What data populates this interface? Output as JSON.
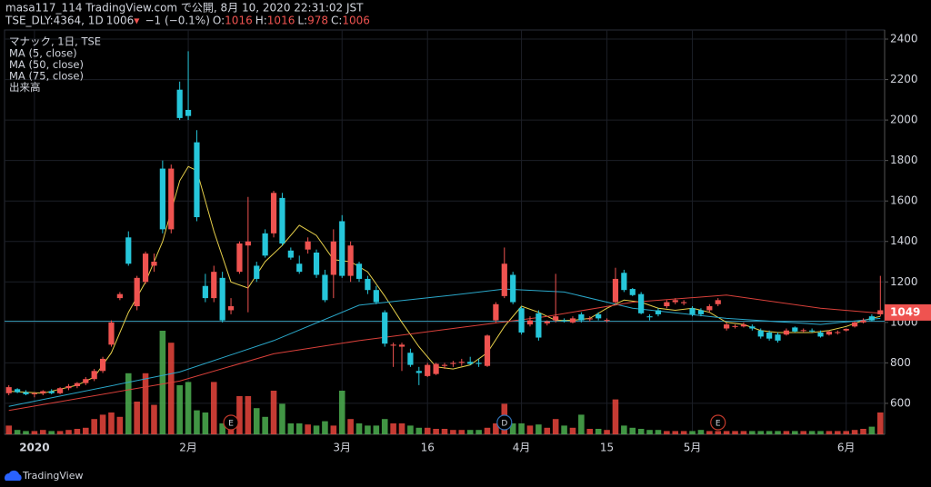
{
  "header": {
    "line1": "masa117_114 TradingView.com で公開, 8月 10, 2020 22:31:02 JST",
    "symbol": "TSE_DLY:4364, 1D",
    "last": 1006,
    "arrow": "▼",
    "change": "−1 (−0.1%)",
    "ohlc": [
      {
        "key": "O:",
        "value": 1016
      },
      {
        "key": "H:",
        "value": 1016
      },
      {
        "key": "L:",
        "value": 978
      },
      {
        "key": "C:",
        "value": 1006
      }
    ]
  },
  "chart_data": {
    "type": "candlestick",
    "title": "マナック, 1日, TSE",
    "volume_name": "出来高",
    "up_color": "#ef5350",
    "down_color": "#26c6da",
    "volume_up_color": "#e8453c",
    "volume_down_color": "#4caf50",
    "ylim": [
      447,
      2445
    ],
    "yticks": [
      600,
      800,
      1000,
      1200,
      1400,
      1600,
      1800,
      2000,
      2200,
      2400
    ],
    "xlim": [
      -0.5,
      102.5
    ],
    "xticks": [
      {
        "value": 3,
        "label": "2020"
      },
      {
        "value": 21,
        "label": "2月"
      },
      {
        "value": 39,
        "label": "3月"
      },
      {
        "value": 49,
        "label": "16"
      },
      {
        "value": 60,
        "label": "4月"
      },
      {
        "value": 70,
        "label": "15"
      },
      {
        "value": 80,
        "label": "5月"
      },
      {
        "value": 98,
        "label": "6月"
      }
    ],
    "vlim": [
      0,
      100
    ],
    "grid": true,
    "price_line": 1006,
    "last_price": 1049,
    "ohlc": [
      [
        650,
        690,
        640,
        680
      ],
      [
        670,
        675,
        650,
        655
      ],
      [
        655,
        665,
        640,
        645
      ],
      [
        645,
        655,
        630,
        650
      ],
      [
        650,
        665,
        640,
        660
      ],
      [
        660,
        670,
        645,
        650
      ],
      [
        650,
        680,
        645,
        675
      ],
      [
        675,
        695,
        665,
        685
      ],
      [
        685,
        705,
        675,
        700
      ],
      [
        700,
        730,
        690,
        720
      ],
      [
        720,
        770,
        710,
        760
      ],
      [
        760,
        830,
        750,
        820
      ],
      [
        890,
        1010,
        880,
        1000
      ],
      [
        1120,
        1150,
        1110,
        1140
      ],
      [
        1420,
        1450,
        1280,
        1290
      ],
      [
        1080,
        1230,
        1060,
        1220
      ],
      [
        1200,
        1350,
        1190,
        1340
      ],
      [
        1280,
        1340,
        1250,
        1300
      ],
      [
        1760,
        1800,
        1440,
        1460
      ],
      [
        1460,
        1780,
        1440,
        1760
      ],
      [
        2150,
        2190,
        2000,
        2010
      ],
      [
        2050,
        2340,
        2000,
        2020
      ],
      [
        1890,
        1950,
        1500,
        1520
      ],
      [
        1180,
        1240,
        1100,
        1120
      ],
      [
        1120,
        1280,
        1100,
        1250
      ],
      [
        1220,
        1250,
        1000,
        1010
      ],
      [
        1060,
        1120,
        1040,
        1080
      ],
      [
        1250,
        1400,
        1240,
        1390
      ],
      [
        1380,
        1620,
        1050,
        1400
      ],
      [
        1280,
        1300,
        1200,
        1215
      ],
      [
        1440,
        1460,
        1320,
        1330
      ],
      [
        1440,
        1650,
        1420,
        1640
      ],
      [
        1615,
        1640,
        1380,
        1390
      ],
      [
        1355,
        1370,
        1310,
        1320
      ],
      [
        1290,
        1330,
        1240,
        1250
      ],
      [
        1360,
        1420,
        1340,
        1400
      ],
      [
        1345,
        1360,
        1220,
        1235
      ],
      [
        1235,
        1260,
        1100,
        1110
      ],
      [
        1235,
        1460,
        1120,
        1400
      ],
      [
        1500,
        1530,
        1220,
        1230
      ],
      [
        1230,
        1400,
        1200,
        1380
      ],
      [
        1290,
        1300,
        1200,
        1215
      ],
      [
        1215,
        1230,
        1140,
        1160
      ],
      [
        1160,
        1180,
        1090,
        1100
      ],
      [
        1050,
        1060,
        880,
        895
      ],
      [
        885,
        900,
        780,
        890
      ],
      [
        880,
        900,
        760,
        890
      ],
      [
        850,
        870,
        780,
        790
      ],
      [
        760,
        780,
        690,
        750
      ],
      [
        735,
        800,
        730,
        790
      ],
      [
        745,
        800,
        740,
        795
      ],
      [
        785,
        800,
        770,
        790
      ],
      [
        795,
        810,
        780,
        800
      ],
      [
        800,
        820,
        785,
        805
      ],
      [
        805,
        830,
        790,
        795
      ],
      [
        800,
        820,
        780,
        795
      ],
      [
        785,
        940,
        780,
        935
      ],
      [
        1010,
        1100,
        1000,
        1090
      ],
      [
        1130,
        1370,
        1120,
        1290
      ],
      [
        1235,
        1250,
        1090,
        1100
      ],
      [
        1070,
        1080,
        940,
        950
      ],
      [
        990,
        1030,
        980,
        1010
      ],
      [
        1045,
        1060,
        910,
        925
      ],
      [
        995,
        1010,
        985,
        1005
      ],
      [
        1010,
        1240,
        1000,
        1030
      ],
      [
        1010,
        1020,
        1000,
        1005
      ],
      [
        1000,
        1030,
        995,
        1020
      ],
      [
        1040,
        1050,
        1000,
        1010
      ],
      [
        1015,
        1030,
        1005,
        1020
      ],
      [
        1040,
        1050,
        1010,
        1020
      ],
      [
        1010,
        1020,
        1000,
        1012
      ],
      [
        1100,
        1270,
        1090,
        1215
      ],
      [
        1245,
        1260,
        1150,
        1160
      ],
      [
        1165,
        1170,
        1130,
        1135
      ],
      [
        1140,
        1150,
        1040,
        1045
      ],
      [
        1030,
        1040,
        1010,
        1025
      ],
      [
        1060,
        1070,
        1030,
        1040
      ],
      [
        1080,
        1110,
        1070,
        1100
      ],
      [
        1100,
        1120,
        1090,
        1110
      ],
      [
        1095,
        1110,
        1085,
        1100
      ],
      [
        1070,
        1080,
        1030,
        1040
      ],
      [
        1060,
        1070,
        1030,
        1040
      ],
      [
        1060,
        1090,
        1050,
        1080
      ],
      [
        1090,
        1120,
        1080,
        1110
      ],
      [
        970,
        1000,
        960,
        990
      ],
      [
        980,
        990,
        970,
        982
      ],
      [
        980,
        1000,
        975,
        990
      ],
      [
        980,
        990,
        960,
        970
      ],
      [
        960,
        970,
        920,
        930
      ],
      [
        950,
        960,
        910,
        920
      ],
      [
        940,
        950,
        900,
        910
      ],
      [
        940,
        970,
        935,
        960
      ],
      [
        975,
        980,
        950,
        955
      ],
      [
        960,
        970,
        950,
        962
      ],
      [
        960,
        970,
        950,
        955
      ],
      [
        950,
        960,
        925,
        930
      ],
      [
        940,
        960,
        935,
        955
      ],
      [
        950,
        960,
        940,
        952
      ],
      [
        960,
        970,
        955,
        968
      ],
      [
        980,
        1005,
        975,
        1000
      ],
      [
        1000,
        1020,
        995,
        1010
      ],
      [
        1030,
        1040,
        1005,
        1010
      ],
      [
        1040,
        1230,
        1030,
        1060
      ]
    ],
    "volumes": [
      8,
      4,
      3,
      3,
      4,
      3,
      3,
      4,
      5,
      6,
      14,
      18,
      20,
      16,
      56,
      30,
      56,
      27,
      95,
      84,
      45,
      48,
      22,
      20,
      48,
      10,
      8,
      35,
      35,
      24,
      16,
      40,
      28,
      10,
      10,
      9,
      8,
      12,
      8,
      40,
      14,
      10,
      8,
      8,
      14,
      10,
      10,
      8,
      6,
      6,
      5,
      5,
      4,
      4,
      4,
      4,
      6,
      10,
      28,
      10,
      10,
      8,
      9,
      6,
      14,
      8,
      6,
      18,
      5,
      5,
      4,
      32,
      8,
      6,
      5,
      4,
      4,
      3,
      3,
      3,
      3,
      4,
      3,
      3,
      3,
      3,
      3,
      3,
      3,
      3,
      3,
      3,
      3,
      3,
      3,
      3,
      3,
      3,
      3,
      4,
      5,
      7,
      20
    ],
    "series": [
      {
        "name": "MA (5, close)",
        "color": "#e6cf4a",
        "x": [
          0,
          4,
          8,
          10,
          12,
          14,
          16,
          18,
          20,
          21,
          22,
          24,
          26,
          28,
          30,
          32,
          34,
          36,
          38,
          40,
          42,
          44,
          46,
          48,
          50,
          52,
          54,
          56,
          58,
          60,
          62,
          64,
          66,
          68,
          70,
          72,
          74,
          76,
          78,
          80,
          82,
          84,
          86,
          88,
          90,
          92,
          94,
          96,
          98,
          100,
          102
        ],
        "values": [
          660,
          650,
          690,
          730,
          850,
          1050,
          1200,
          1400,
          1700,
          1770,
          1750,
          1450,
          1200,
          1170,
          1300,
          1380,
          1480,
          1430,
          1310,
          1300,
          1250,
          1130,
          1000,
          880,
          780,
          770,
          790,
          850,
          980,
          1080,
          1050,
          1010,
          1010,
          1020,
          1070,
          1110,
          1100,
          1070,
          1060,
          1070,
          1050,
          1000,
          990,
          960,
          950,
          950,
          950,
          960,
          980,
          1010,
          1030
        ]
      },
      {
        "name": "MA (50, close)",
        "color": "#2aa7c9",
        "x": [
          0,
          20,
          31,
          41,
          52,
          58,
          65,
          73,
          84,
          95,
          102
        ],
        "values": [
          585,
          755,
          910,
          1085,
          1135,
          1165,
          1150,
          1070,
          1020,
          990,
          1020
        ]
      },
      {
        "name": "MA (75, close)",
        "color": "#d9403a",
        "x": [
          0,
          20,
          31,
          41,
          52,
          63,
          73,
          84,
          95,
          102
        ],
        "values": [
          565,
          710,
          845,
          910,
          970,
          1030,
          1100,
          1135,
          1070,
          1045
        ]
      }
    ],
    "events": [
      {
        "index": 26,
        "label": "E",
        "color": "#c0392b"
      },
      {
        "index": 58,
        "label": "D",
        "color": "#2f6fb3"
      },
      {
        "index": 83,
        "label": "E",
        "color": "#c0392b"
      }
    ]
  },
  "footer": {
    "brand": "TradingView"
  }
}
